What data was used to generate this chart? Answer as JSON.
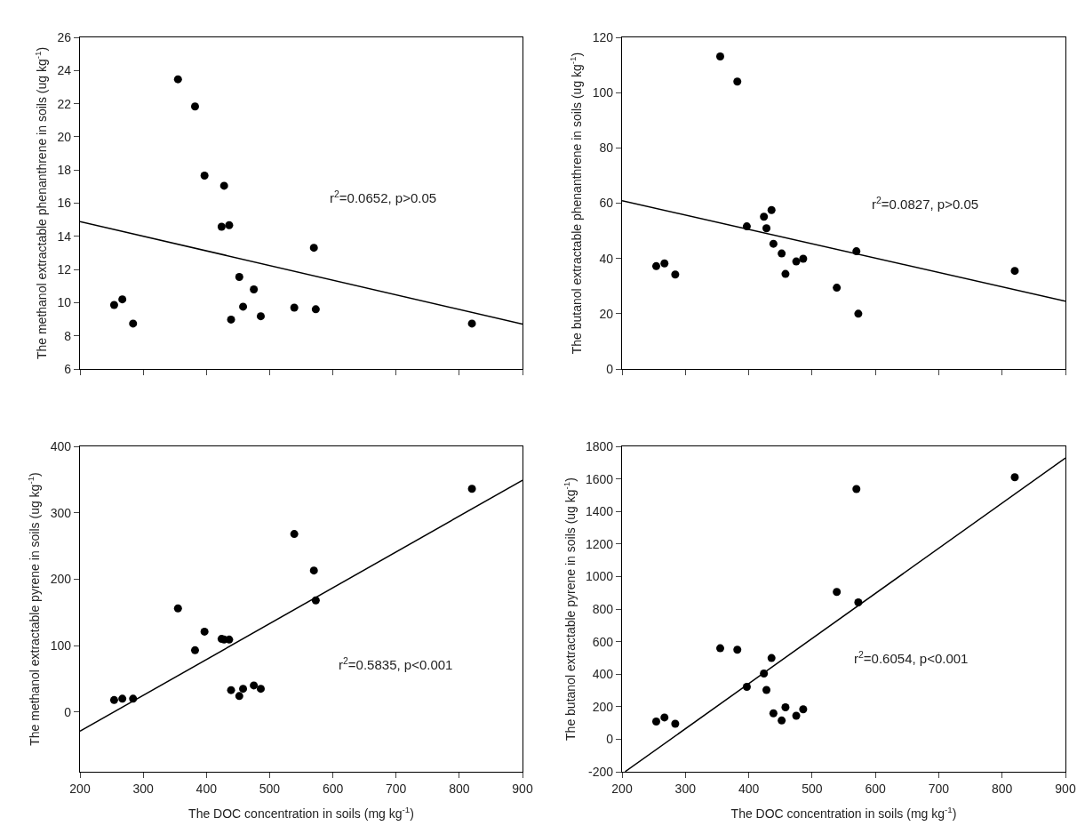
{
  "chart_data": [
    {
      "type": "scatter",
      "ylabel": "The methanol extractable phenanthrene in soils (ug kg$^{-1}$)",
      "x": [
        254,
        267,
        284,
        355,
        382,
        397,
        424,
        428,
        436,
        439,
        452,
        458,
        475,
        486,
        539,
        570,
        573,
        820
      ],
      "xlim": [
        200,
        900
      ],
      "xticks": [
        200,
        300,
        400,
        500,
        600,
        700,
        800,
        900
      ],
      "ylim": [
        6,
        26
      ],
      "yticks": [
        6,
        8,
        10,
        12,
        14,
        16,
        18,
        20,
        22,
        24,
        26
      ],
      "tick_labels": "y",
      "line_style": "solid",
      "annotations": [
        "r$^{2}$=0.0652, p>0.05"
      ],
      "series": [
        {
          "color": "#000000",
          "marker": "circle",
          "values": [
            9.86,
            10.2,
            8.74,
            23.47,
            21.83,
            17.66,
            14.58,
            17.05,
            14.67,
            8.98,
            11.55,
            9.76,
            10.8,
            9.18,
            9.7,
            13.31,
            9.6,
            8.74
          ]
        },
        {
          "type": "line",
          "marker": "none",
          "color": "#000000",
          "x": [
            200,
            900
          ],
          "values": [
            14.89,
            8.71
          ]
        }
      ]
    },
    {
      "type": "scatter",
      "ylabel": "The butanol extractable phenanthrene in soils (ug kg$^{-1}$)",
      "x": [
        254,
        267,
        284,
        355,
        382,
        397,
        424,
        428,
        436,
        439,
        452,
        458,
        475,
        486,
        539,
        570,
        573,
        820
      ],
      "xlim": [
        200,
        900
      ],
      "xticks": [
        200,
        300,
        400,
        500,
        600,
        700,
        800,
        900
      ],
      "ylim": [
        0,
        120
      ],
      "yticks": [
        0,
        20,
        40,
        60,
        80,
        100,
        120
      ],
      "tick_labels": "y",
      "line_style": "solid",
      "annotations": [
        "r$^{2}$=0.0827, p>0.05"
      ],
      "series": [
        {
          "color": "#000000",
          "marker": "circle",
          "values": [
            37.2,
            38.2,
            34.2,
            113.1,
            104.0,
            51.6,
            55.1,
            50.9,
            57.5,
            45.3,
            41.8,
            34.4,
            38.9,
            39.9,
            29.4,
            42.6,
            20.0,
            35.5
          ]
        },
        {
          "type": "line",
          "marker": "none",
          "color": "#000000",
          "x": [
            200,
            900
          ],
          "values": [
            60.9,
            24.5
          ]
        }
      ]
    },
    {
      "type": "scatter",
      "xlabel": "The DOC concentration in soils (mg kg$^{-1}$)",
      "ylabel": "The methanol extractable pyrene in soils (ug kg$^{-1}$)",
      "x": [
        254,
        267,
        284,
        355,
        382,
        397,
        424,
        428,
        436,
        439,
        452,
        458,
        475,
        486,
        539,
        570,
        573,
        820
      ],
      "xlim": [
        200,
        900
      ],
      "xticks": [
        200,
        300,
        400,
        500,
        600,
        700,
        800,
        900
      ],
      "ylim": [
        -90,
        400
      ],
      "yticks": [
        0,
        100,
        200,
        300,
        400
      ],
      "line_style": "solid",
      "annotations": [
        "r$^{2}$=0.5835, p<0.001"
      ],
      "series": [
        {
          "color": "#000000",
          "marker": "circle",
          "values": [
            18,
            20,
            20,
            156,
            93,
            121,
            110,
            109,
            109,
            33,
            24,
            35,
            40,
            35,
            268,
            213,
            168,
            336
          ]
        },
        {
          "type": "line",
          "marker": "none",
          "color": "#000000",
          "x": [
            200,
            900
          ],
          "values": [
            -29,
            349
          ]
        }
      ]
    },
    {
      "type": "scatter",
      "xlabel": "The DOC concentration in soils (mg kg$^{-1}$)",
      "ylabel": "The butanol extractable pyrene in soils (ug kg$^{-1}$)",
      "x": [
        254,
        267,
        284,
        355,
        382,
        397,
        424,
        428,
        436,
        439,
        452,
        458,
        475,
        486,
        539,
        570,
        573,
        820
      ],
      "xlim": [
        200,
        900
      ],
      "xticks": [
        200,
        300,
        400,
        500,
        600,
        700,
        800,
        900
      ],
      "ylim": [
        -200,
        1800
      ],
      "yticks": [
        -200,
        0,
        200,
        400,
        600,
        800,
        1000,
        1200,
        1400,
        1600,
        1800
      ],
      "line_style": "solid",
      "annotations": [
        "r$^{2}$=0.6054, p<0.001"
      ],
      "series": [
        {
          "color": "#000000",
          "marker": "circle",
          "values": [
            109,
            134,
            95,
            559,
            550,
            322,
            404,
            303,
            499,
            159,
            115,
            196,
            144,
            184,
            905,
            1538,
            841,
            1610
          ]
        },
        {
          "type": "line",
          "marker": "none",
          "color": "#000000",
          "x": [
            205,
            900
          ],
          "values": [
            -199,
            1728
          ]
        }
      ]
    }
  ]
}
